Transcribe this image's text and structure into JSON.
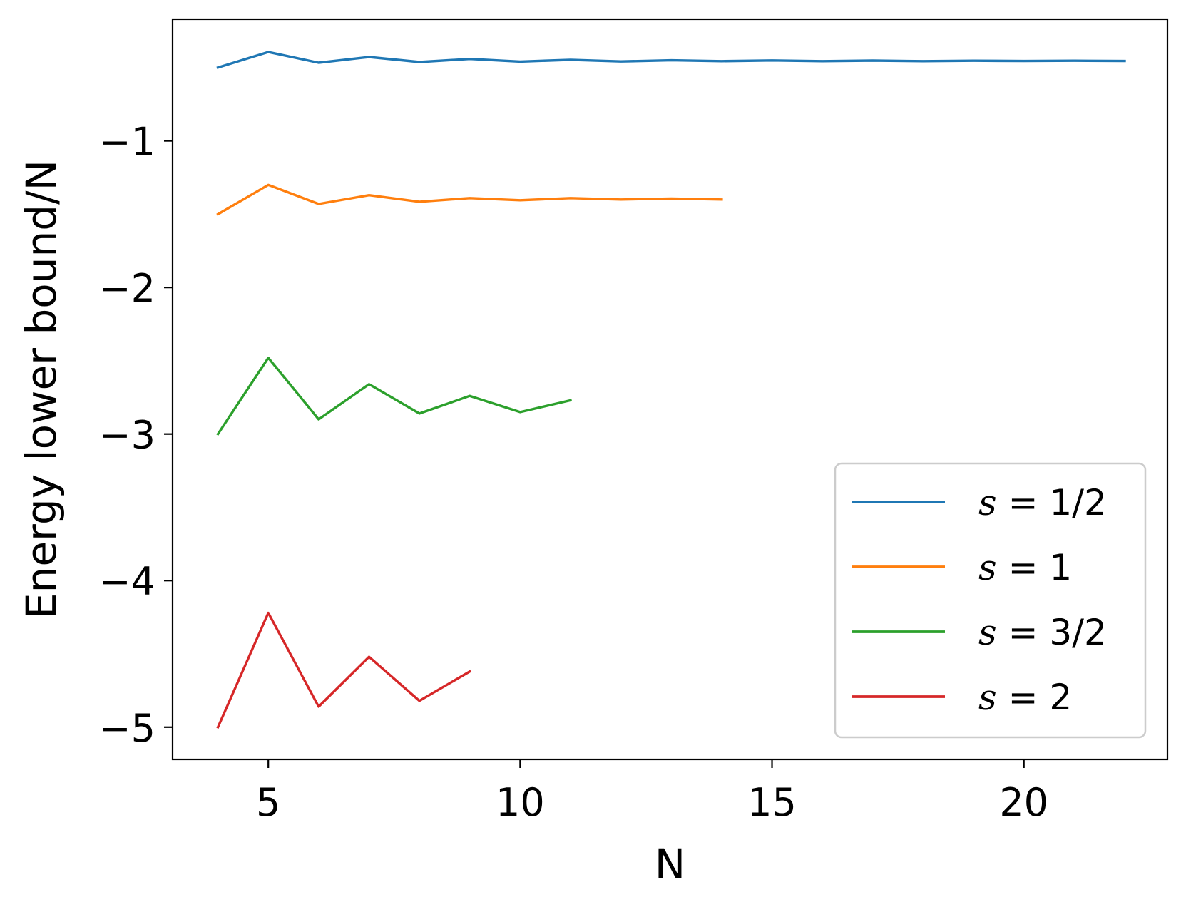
{
  "chart_data": {
    "type": "line",
    "xlabel": "N",
    "ylabel": "Energy lower bound/N",
    "xlim": [
      3.1,
      22.85
    ],
    "ylim": [
      -5.22,
      -0.17
    ],
    "xticks": [
      5,
      10,
      15,
      20
    ],
    "xtick_labels": [
      "5",
      "10",
      "15",
      "20"
    ],
    "yticks": [
      -1,
      -2,
      -3,
      -4,
      -5
    ],
    "ytick_labels": [
      "−1",
      "−2",
      "−3",
      "−4",
      "−5"
    ],
    "grid": false,
    "legend_position": "lower right",
    "series": [
      {
        "name": "s = 1/2",
        "legend_var": "s",
        "legend_rest": " = 1/2",
        "color": "#1f77b4",
        "x": [
          4,
          5,
          6,
          7,
          8,
          9,
          10,
          11,
          12,
          13,
          14,
          15,
          16,
          17,
          18,
          19,
          20,
          21,
          22
        ],
        "y": [
          -0.5,
          -0.394,
          -0.467,
          -0.428,
          -0.462,
          -0.441,
          -0.459,
          -0.447,
          -0.458,
          -0.45,
          -0.456,
          -0.451,
          -0.456,
          -0.452,
          -0.456,
          -0.453,
          -0.455,
          -0.453,
          -0.455
        ]
      },
      {
        "name": "s = 1",
        "legend_var": "s",
        "legend_rest": " = 1",
        "color": "#ff7f0e",
        "x": [
          4,
          5,
          6,
          7,
          8,
          9,
          10,
          11,
          12,
          13,
          14
        ],
        "y": [
          -1.5,
          -1.3,
          -1.43,
          -1.37,
          -1.415,
          -1.39,
          -1.405,
          -1.39,
          -1.4,
          -1.393,
          -1.4
        ]
      },
      {
        "name": "s = 3/2",
        "legend_var": "s",
        "legend_rest": " = 3/2",
        "color": "#2ca02c",
        "x": [
          4,
          5,
          6,
          7,
          8,
          9,
          10,
          11
        ],
        "y": [
          -3.0,
          -2.48,
          -2.9,
          -2.66,
          -2.86,
          -2.74,
          -2.85,
          -2.77
        ]
      },
      {
        "name": "s = 2",
        "legend_var": "s",
        "legend_rest": " = 2",
        "color": "#d62728",
        "x": [
          4,
          5,
          6,
          7,
          8,
          9
        ],
        "y": [
          -5.0,
          -4.22,
          -4.86,
          -4.52,
          -4.82,
          -4.62
        ]
      }
    ]
  }
}
